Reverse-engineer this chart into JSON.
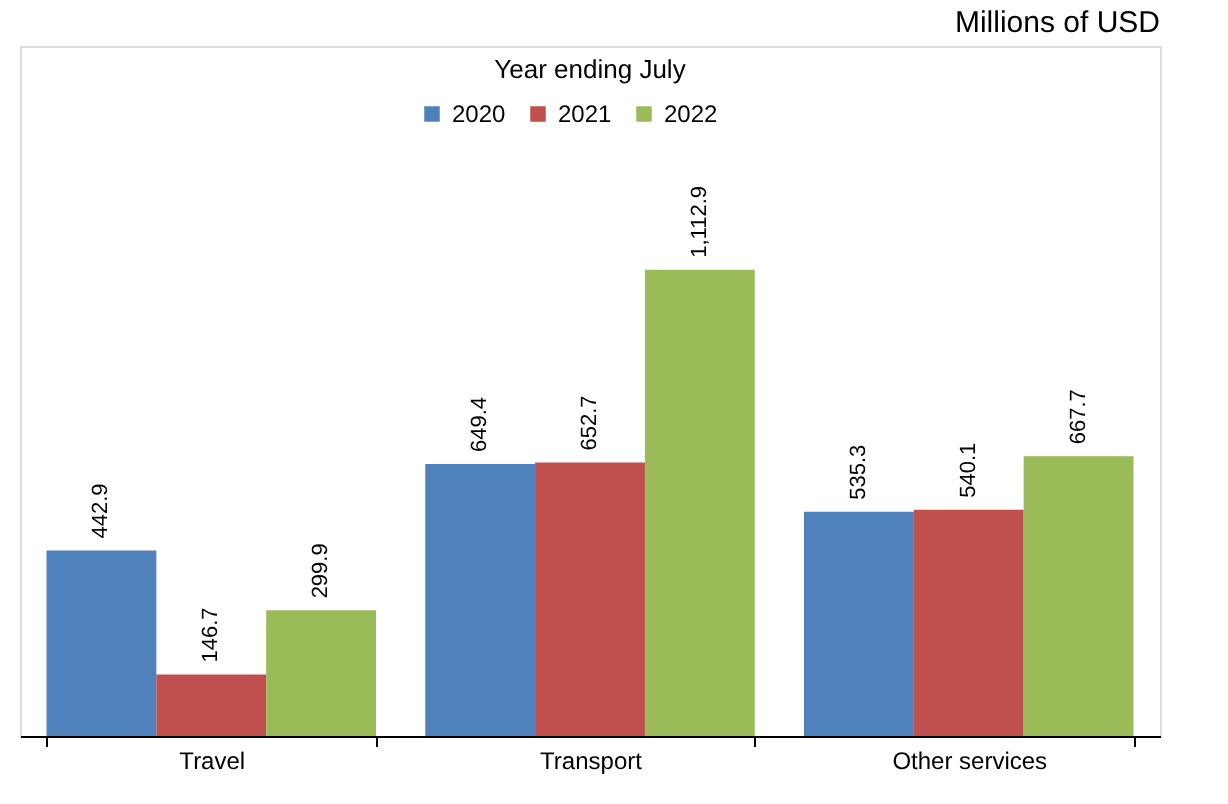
{
  "chart_data": {
    "type": "bar",
    "title": "Year ending  July",
    "annotations": [
      "Millions of USD"
    ],
    "categories": [
      "Travel",
      "Transport",
      "Other services"
    ],
    "series": [
      {
        "name": "2020",
        "color": "#4f81bd",
        "values": [
          442.9,
          649.4,
          535.3
        ],
        "value_labels": [
          "442.9",
          "649.4",
          "535.3"
        ]
      },
      {
        "name": "2021",
        "color": "#c0504d",
        "values": [
          146.7,
          652.7,
          540.1
        ],
        "value_labels": [
          "146.7",
          "652.7",
          "540.1"
        ]
      },
      {
        "name": "2022",
        "color": "#9bbb59",
        "values": [
          299.9,
          1112.9,
          667.7
        ],
        "value_labels": [
          "299.9",
          "1,112.9",
          "667.7"
        ]
      }
    ],
    "legend": "top",
    "grid": false
  }
}
